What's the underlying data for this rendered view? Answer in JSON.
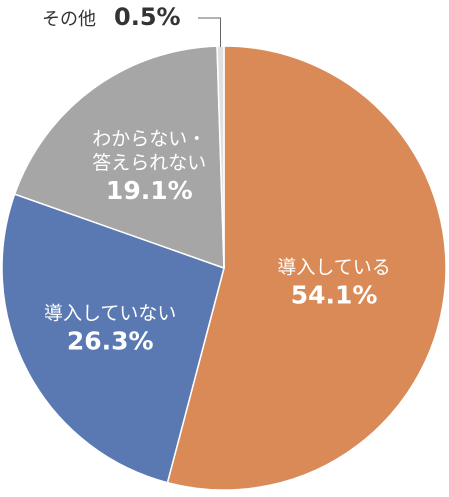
{
  "chart_data": {
    "type": "pie",
    "start_angle_deg": 0,
    "direction": "clockwise",
    "slices": [
      {
        "label": "導入している",
        "value": 54.1,
        "value_text": "54.1%",
        "color": "#D98A57"
      },
      {
        "label": "導入していない",
        "value": 26.3,
        "value_text": "26.3%",
        "color": "#5A79B3"
      },
      {
        "label": "わからない・答えられない",
        "label_lines": [
          "わからない・",
          "答えられない"
        ],
        "value": 19.1,
        "value_text": "19.1%",
        "color": "#A6A6A6"
      },
      {
        "label": "その他",
        "value": 0.5,
        "value_text": "0.5%",
        "color": "#E0E0E0"
      }
    ],
    "slice_border_color": "#FFFFFF",
    "legend": "none",
    "small_slice_callout": true
  }
}
